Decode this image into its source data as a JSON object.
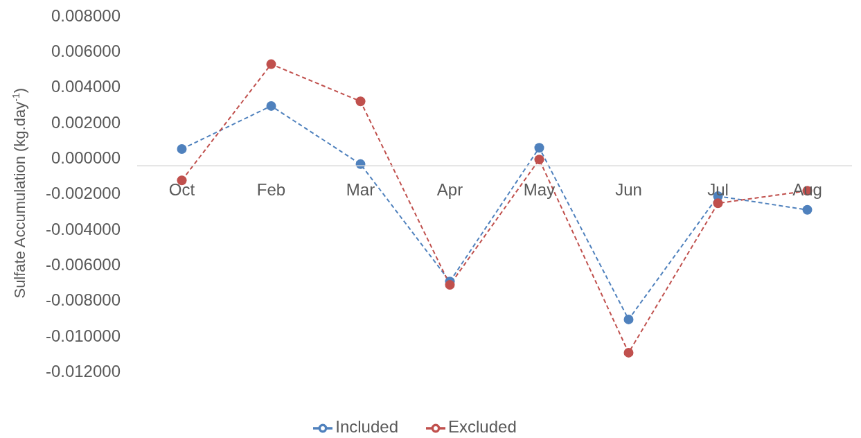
{
  "chart_data": {
    "type": "line",
    "ylabel": "Sulfate Accumulation (kg.day$^{-1}$)",
    "categories": [
      "Oct",
      "Feb",
      "Mar",
      "Apr",
      "May",
      "Jun",
      "Jul",
      "Aug"
    ],
    "series": [
      {
        "name": "Included",
        "color": "#4f81bd",
        "values": [
          0.00048,
          0.0029,
          -0.00037,
          -0.00697,
          0.00055,
          -0.0091,
          -0.00217,
          -0.00294
        ]
      },
      {
        "name": "Excluded",
        "color": "#c0504d",
        "values": [
          -0.00128,
          0.00525,
          0.00316,
          -0.00716,
          -0.00011,
          -0.01097,
          -0.00257,
          -0.00187
        ]
      }
    ],
    "ylim": [
      -0.012,
      0.008
    ],
    "yticks": [
      {
        "value": -0.012,
        "label": "-0.012000"
      },
      {
        "value": -0.01,
        "label": "-0.010000"
      },
      {
        "value": -0.008,
        "label": "-0.008000"
      },
      {
        "value": -0.006,
        "label": "-0.006000"
      },
      {
        "value": -0.004,
        "label": "-0.004000"
      },
      {
        "value": -0.002,
        "label": "-0.002000"
      },
      {
        "value": 0,
        "label": "0.000000"
      },
      {
        "value": 0.002,
        "label": "0.002000"
      },
      {
        "value": 0.004,
        "label": "0.004000"
      },
      {
        "value": 0.006,
        "label": "0.006000"
      },
      {
        "value": 0.008,
        "label": "0.008000"
      }
    ],
    "grid": false,
    "legend": "bottom",
    "marker": "circle",
    "line_style": "dashed"
  }
}
